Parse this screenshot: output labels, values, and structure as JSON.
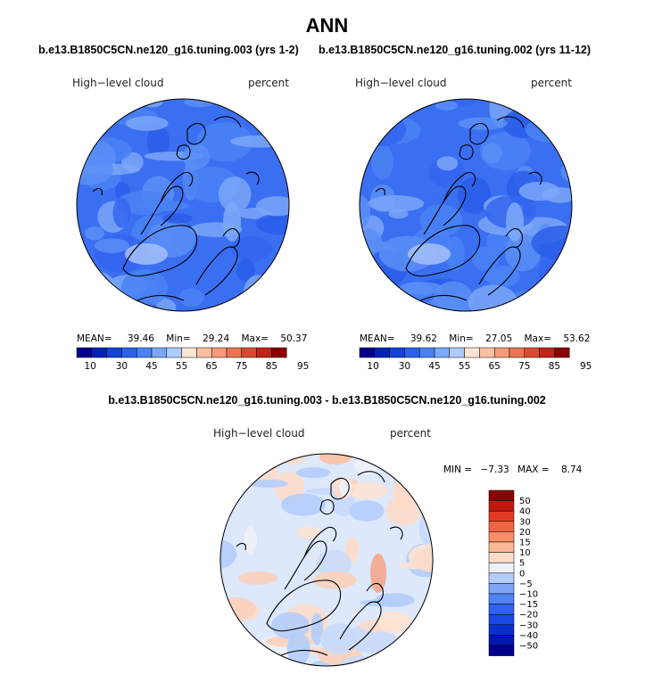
{
  "page": {
    "title": "ANN"
  },
  "colors": {
    "seq": [
      "#00008b",
      "#0022b5",
      "#1342d7",
      "#2a62ec",
      "#4a82f5",
      "#7aa7f8",
      "#afcbfb",
      "#fde3d3",
      "#fbc0a3",
      "#f59a7a",
      "#ea7552",
      "#db4a2f",
      "#c0251a",
      "#8b0000"
    ],
    "diff": [
      "#00008b",
      "#0018b0",
      "#0a30cc",
      "#1a48e2",
      "#2f62f0",
      "#4f82f5",
      "#7ea5f8",
      "#b4cdfb",
      "#eef1f7",
      "#fcdcc9",
      "#fbb898",
      "#f88e68",
      "#f06442",
      "#e03b22",
      "#c01a0e",
      "#8b0000"
    ]
  },
  "chart_data": [
    {
      "type": "heatmap",
      "panel": "left",
      "subtitle": "b.e13.B1850C5CN.ne120_g16.tuning.003 (yrs 1-2)",
      "field": "High−level cloud",
      "units": "percent",
      "projection": "polar-stereographic (north)",
      "stats": {
        "mean_label": "MEAN=",
        "mean": "39.46",
        "min_label": "Min=",
        "min": "29.24",
        "max_label": "Max=",
        "max": "50.37"
      },
      "colorbar_ticks": [
        "10",
        "30",
        "45",
        "55",
        "65",
        "75",
        "85",
        "95"
      ],
      "dominant_range": [
        30,
        45
      ]
    },
    {
      "type": "heatmap",
      "panel": "right",
      "subtitle": "b.e13.B1850C5CN.ne120_g16.tuning.002 (yrs 11-12)",
      "field": "High−level cloud",
      "units": "percent",
      "projection": "polar-stereographic (north)",
      "stats": {
        "mean_label": "MEAN=",
        "mean": "39.62",
        "min_label": "Min=",
        "min": "27.05",
        "max_label": "Max=",
        "max": "53.62"
      },
      "colorbar_ticks": [
        "10",
        "30",
        "45",
        "55",
        "65",
        "75",
        "85",
        "95"
      ],
      "dominant_range": [
        30,
        45
      ]
    },
    {
      "type": "heatmap",
      "panel": "difference",
      "subtitle": "b.e13.B1850C5CN.ne120_g16.tuning.003 - b.e13.B1850C5CN.ne120_g16.tuning.002",
      "field": "High−level cloud",
      "units": "percent",
      "projection": "polar-stereographic (north)",
      "stats": {
        "min_label": "MIN =",
        "min": "−7.33",
        "max_label": "MAX =",
        "max": "8.74"
      },
      "colorbar_ticks": [
        "50",
        "40",
        "30",
        "20",
        "15",
        "10",
        "5",
        "0",
        "−5",
        "−10",
        "−15",
        "−20",
        "−30",
        "−40",
        "−50"
      ],
      "dominant_range": [
        -5,
        5
      ]
    }
  ]
}
